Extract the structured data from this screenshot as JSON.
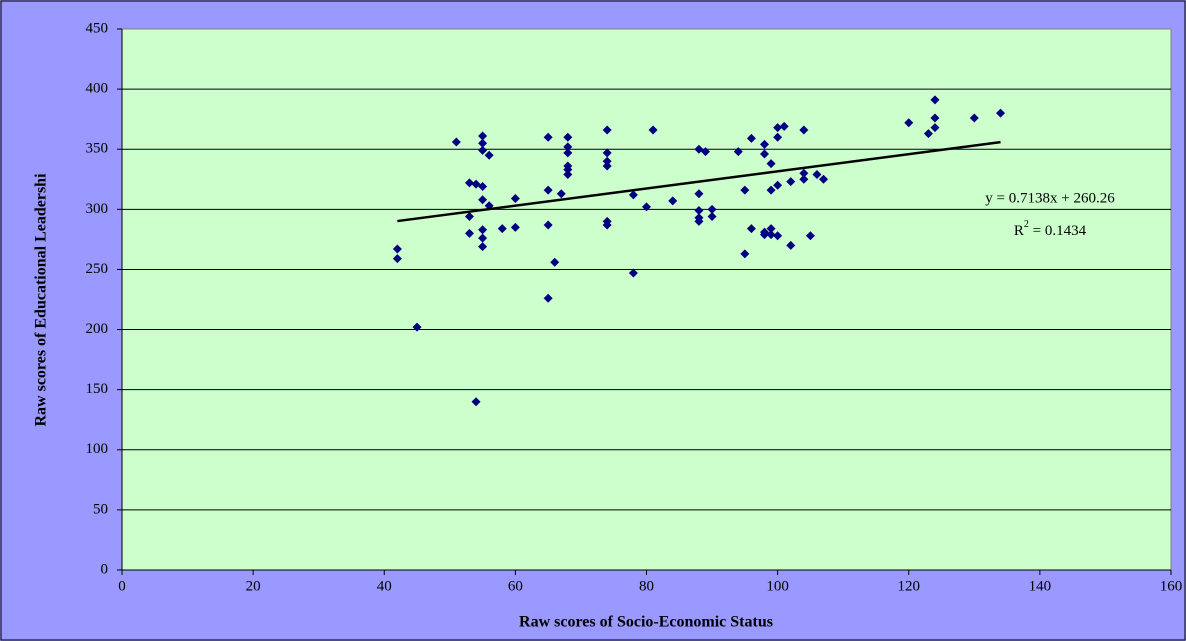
{
  "chart_data": {
    "type": "scatter",
    "x_label": "Raw scores of Socio-Economic Status",
    "y_label": "Raw scores of Educational Leadershi",
    "xlim": [
      0,
      160
    ],
    "xticks": [
      0,
      20,
      40,
      60,
      80,
      100,
      120,
      140,
      160
    ],
    "ylim": [
      0,
      450
    ],
    "yticks": [
      0,
      50,
      100,
      150,
      200,
      250,
      300,
      350,
      400,
      450
    ],
    "grid": true,
    "series": [
      {
        "color": "#000080",
        "x": [
          42,
          42,
          45,
          51,
          53,
          53,
          53,
          54,
          54,
          55,
          55,
          55,
          55,
          55,
          55,
          55,
          55,
          56,
          56,
          58,
          60,
          60,
          65,
          65,
          65,
          65,
          66,
          67,
          68,
          68,
          68,
          68,
          68,
          68,
          74,
          74,
          74,
          74,
          74,
          74,
          78,
          78,
          80,
          81,
          84,
          88,
          88,
          88,
          88,
          88,
          89,
          90,
          90,
          94,
          95,
          95,
          96,
          96,
          98,
          98,
          98,
          98,
          99,
          99,
          99,
          99,
          100,
          100,
          100,
          100,
          101,
          102,
          102,
          104,
          104,
          104,
          105,
          106,
          107,
          120,
          123,
          124,
          124,
          124,
          130,
          134
        ],
        "values": [
          267,
          259,
          202,
          356,
          322,
          294,
          280,
          321,
          140,
          361,
          355,
          349,
          319,
          308,
          283,
          276,
          269,
          345,
          303,
          284,
          309,
          285,
          360,
          316,
          287,
          226,
          256,
          313,
          360,
          352,
          347,
          336,
          333,
          329,
          366,
          347,
          340,
          336,
          290,
          287,
          312,
          247,
          302,
          366,
          307,
          350,
          313,
          299,
          293,
          290,
          348,
          300,
          294,
          348,
          316,
          263,
          359,
          284,
          354,
          346,
          281,
          279,
          338,
          316,
          284,
          279,
          368,
          360,
          320,
          278,
          369,
          323,
          270,
          366,
          330,
          325,
          278,
          329,
          325,
          372,
          363,
          391,
          376,
          368,
          376,
          380
        ]
      }
    ],
    "trendline": {
      "slope": 0.7138,
      "intercept": 260.26,
      "x_range": [
        42,
        134
      ],
      "color": "#000000",
      "equation": "y = 0.7138x + 260.26",
      "r2_label": "R",
      "r2_sup": "2",
      "r2_value": " = 0.1434"
    }
  }
}
